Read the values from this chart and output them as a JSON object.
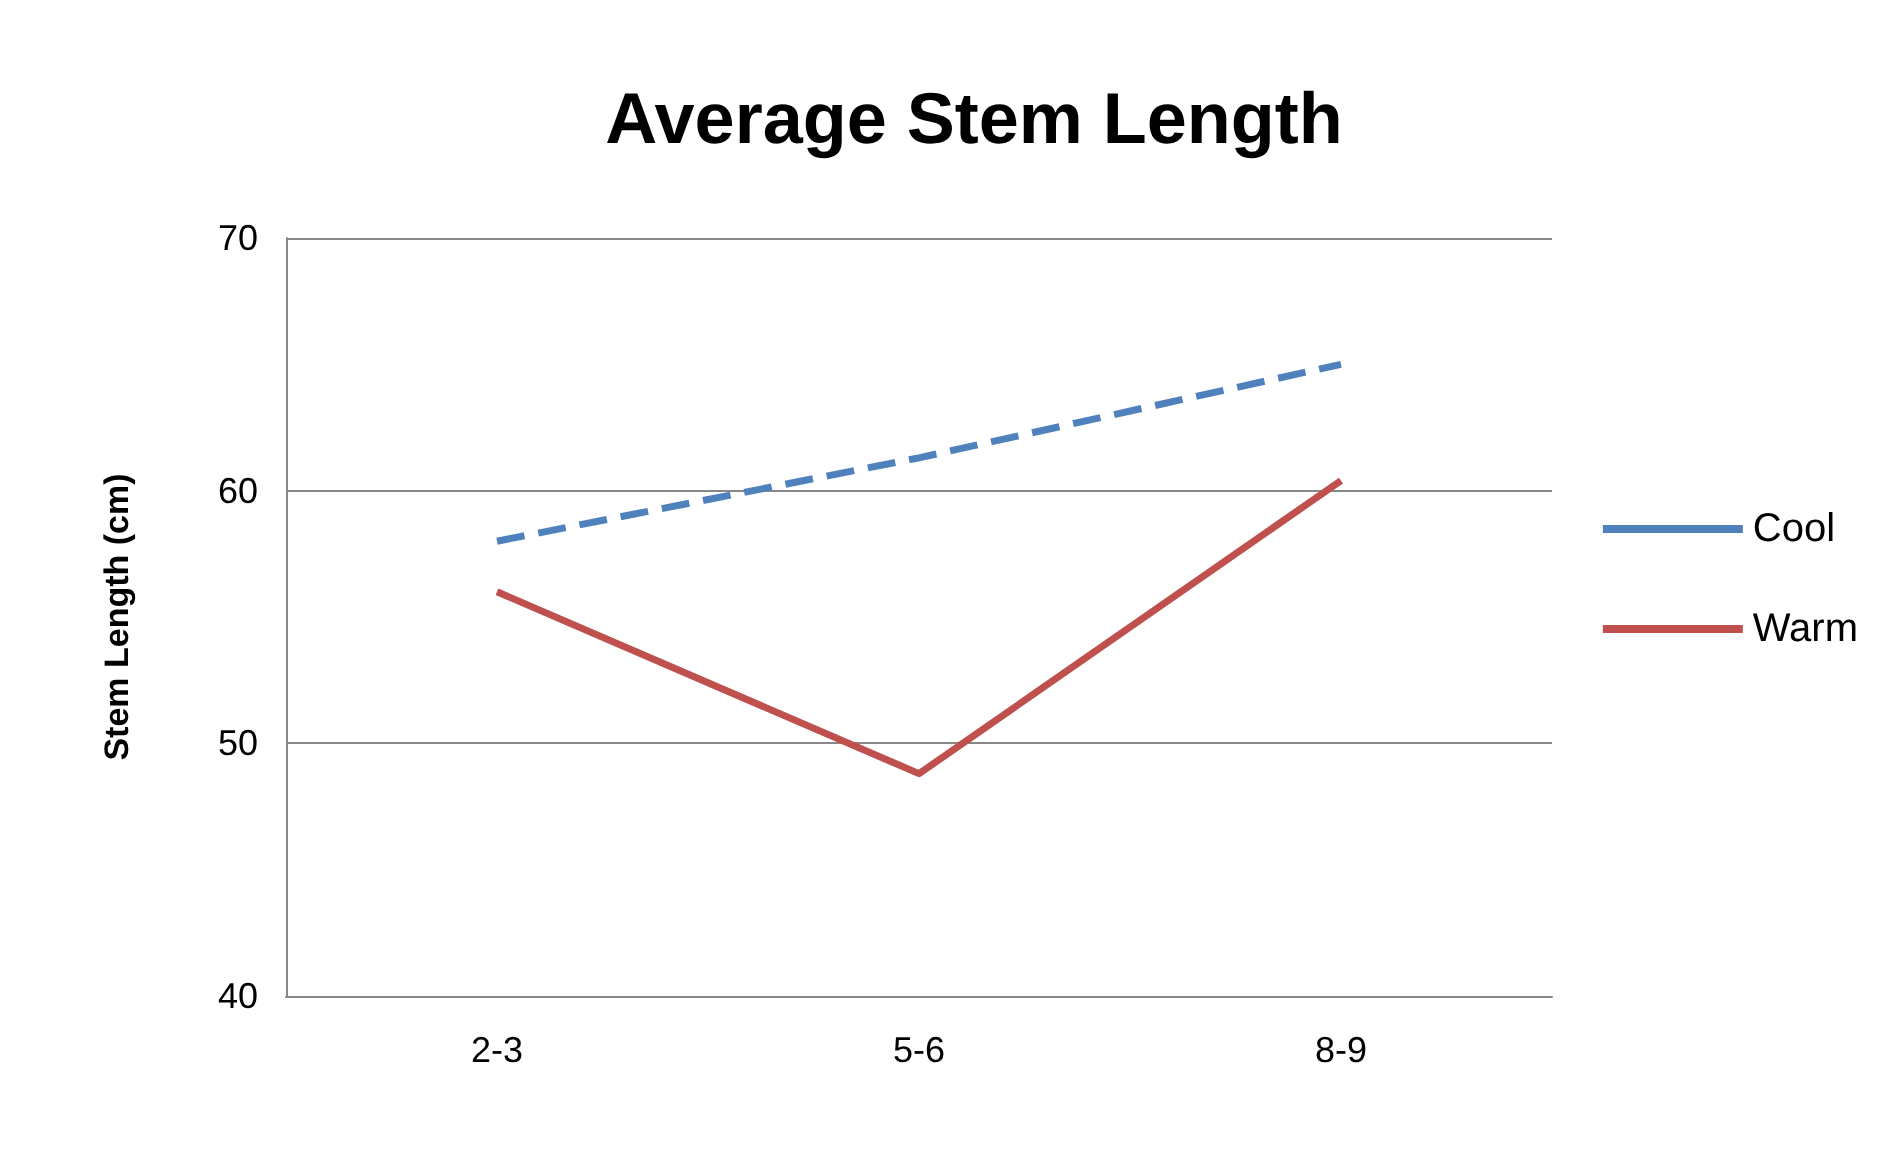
{
  "chart_data": {
    "type": "line",
    "title": "Average Stem Length",
    "ylabel": "Stem Length (cm)",
    "categories": [
      "2-3",
      "5-6",
      "8-9"
    ],
    "series": [
      {
        "name": "Cool",
        "color": "#4f81bd",
        "values": [
          58,
          61.3,
          65
        ],
        "line_style": "dashed"
      },
      {
        "name": "Warm",
        "color": "#c0504d",
        "values": [
          56,
          48.8,
          60.4
        ],
        "line_style": "solid"
      }
    ],
    "ylim": [
      40,
      70
    ],
    "yticks": [
      40,
      50,
      60,
      70
    ],
    "grid": "y",
    "legend": "right",
    "marker": "none"
  }
}
